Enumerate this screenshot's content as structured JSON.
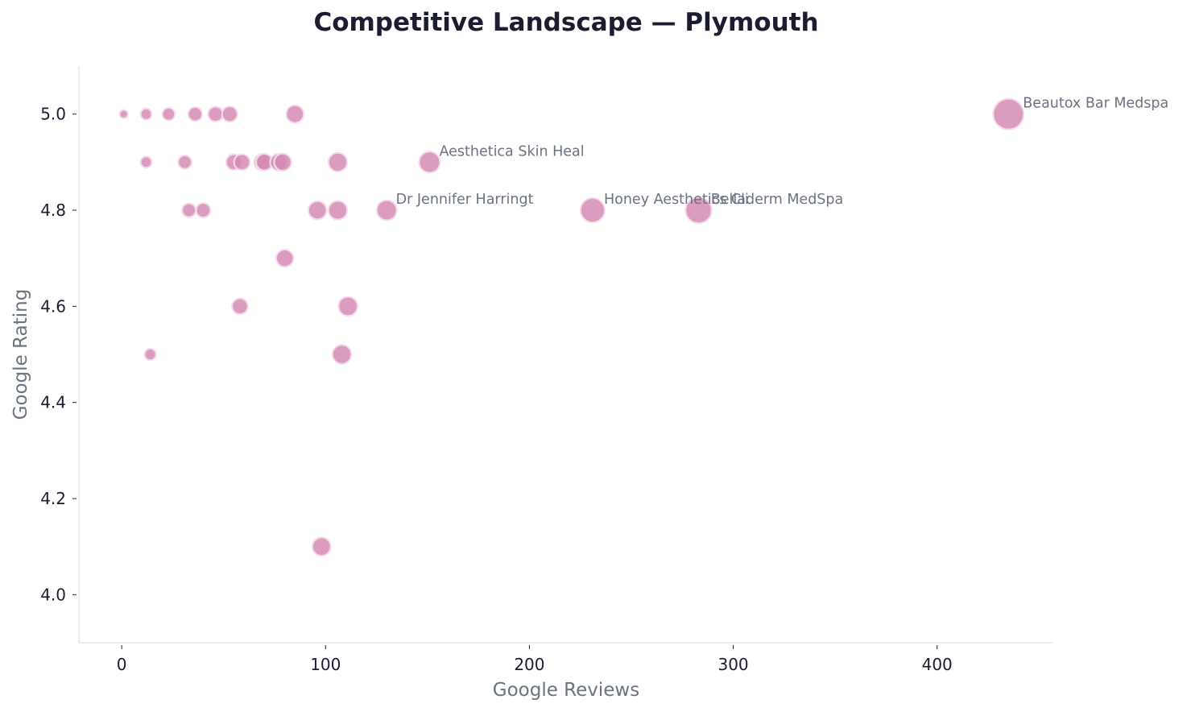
{
  "chart_data": {
    "type": "scatter",
    "title": "Competitive Landscape — Plymouth",
    "xlabel": "Google Reviews",
    "ylabel": "Google Rating",
    "xlim": [
      -21,
      457
    ],
    "ylim": [
      3.9,
      5.1
    ],
    "xticks": [
      0,
      100,
      200,
      300,
      400
    ],
    "yticks": [
      4.0,
      4.2,
      4.4,
      4.6,
      4.8,
      5.0
    ],
    "xtick_labels": [
      "0",
      "100",
      "200",
      "300",
      "400"
    ],
    "ytick_labels": [
      "4.0",
      "4.2",
      "4.4",
      "4.6",
      "4.8",
      "5.0"
    ],
    "grid": false,
    "legend": null,
    "marker_color": "#d48bb4",
    "marker_edge_color": "#f6dceb",
    "size_encoding": "marker size proportional to Google Reviews",
    "points": [
      {
        "x": 1,
        "y": 5.0,
        "label": ""
      },
      {
        "x": 12,
        "y": 5.0,
        "label": ""
      },
      {
        "x": 23,
        "y": 5.0,
        "label": ""
      },
      {
        "x": 36,
        "y": 5.0,
        "label": ""
      },
      {
        "x": 46,
        "y": 5.0,
        "label": ""
      },
      {
        "x": 53,
        "y": 5.0,
        "label": ""
      },
      {
        "x": 85,
        "y": 5.0,
        "label": ""
      },
      {
        "x": 435,
        "y": 5.0,
        "label": "Beautox Bar Medspa"
      },
      {
        "x": 12,
        "y": 4.9,
        "label": ""
      },
      {
        "x": 31,
        "y": 4.9,
        "label": ""
      },
      {
        "x": 55,
        "y": 4.9,
        "label": ""
      },
      {
        "x": 59,
        "y": 4.9,
        "label": ""
      },
      {
        "x": 69,
        "y": 4.9,
        "label": ""
      },
      {
        "x": 70,
        "y": 4.9,
        "label": ""
      },
      {
        "x": 77,
        "y": 4.9,
        "label": ""
      },
      {
        "x": 79,
        "y": 4.9,
        "label": ""
      },
      {
        "x": 106,
        "y": 4.9,
        "label": ""
      },
      {
        "x": 151,
        "y": 4.9,
        "label": "Aesthetica Skin Heal"
      },
      {
        "x": 33,
        "y": 4.8,
        "label": ""
      },
      {
        "x": 40,
        "y": 4.8,
        "label": ""
      },
      {
        "x": 96,
        "y": 4.8,
        "label": ""
      },
      {
        "x": 106,
        "y": 4.8,
        "label": ""
      },
      {
        "x": 130,
        "y": 4.8,
        "label": "Dr Jennifer Harringt"
      },
      {
        "x": 231,
        "y": 4.8,
        "label": "Honey Aesthetics Cli"
      },
      {
        "x": 283,
        "y": 4.8,
        "label": "Belladerm MedSpa"
      },
      {
        "x": 80,
        "y": 4.7,
        "label": ""
      },
      {
        "x": 58,
        "y": 4.6,
        "label": ""
      },
      {
        "x": 111,
        "y": 4.6,
        "label": ""
      },
      {
        "x": 14,
        "y": 4.5,
        "label": ""
      },
      {
        "x": 108,
        "y": 4.5,
        "label": ""
      },
      {
        "x": 98,
        "y": 4.1,
        "label": ""
      }
    ]
  }
}
